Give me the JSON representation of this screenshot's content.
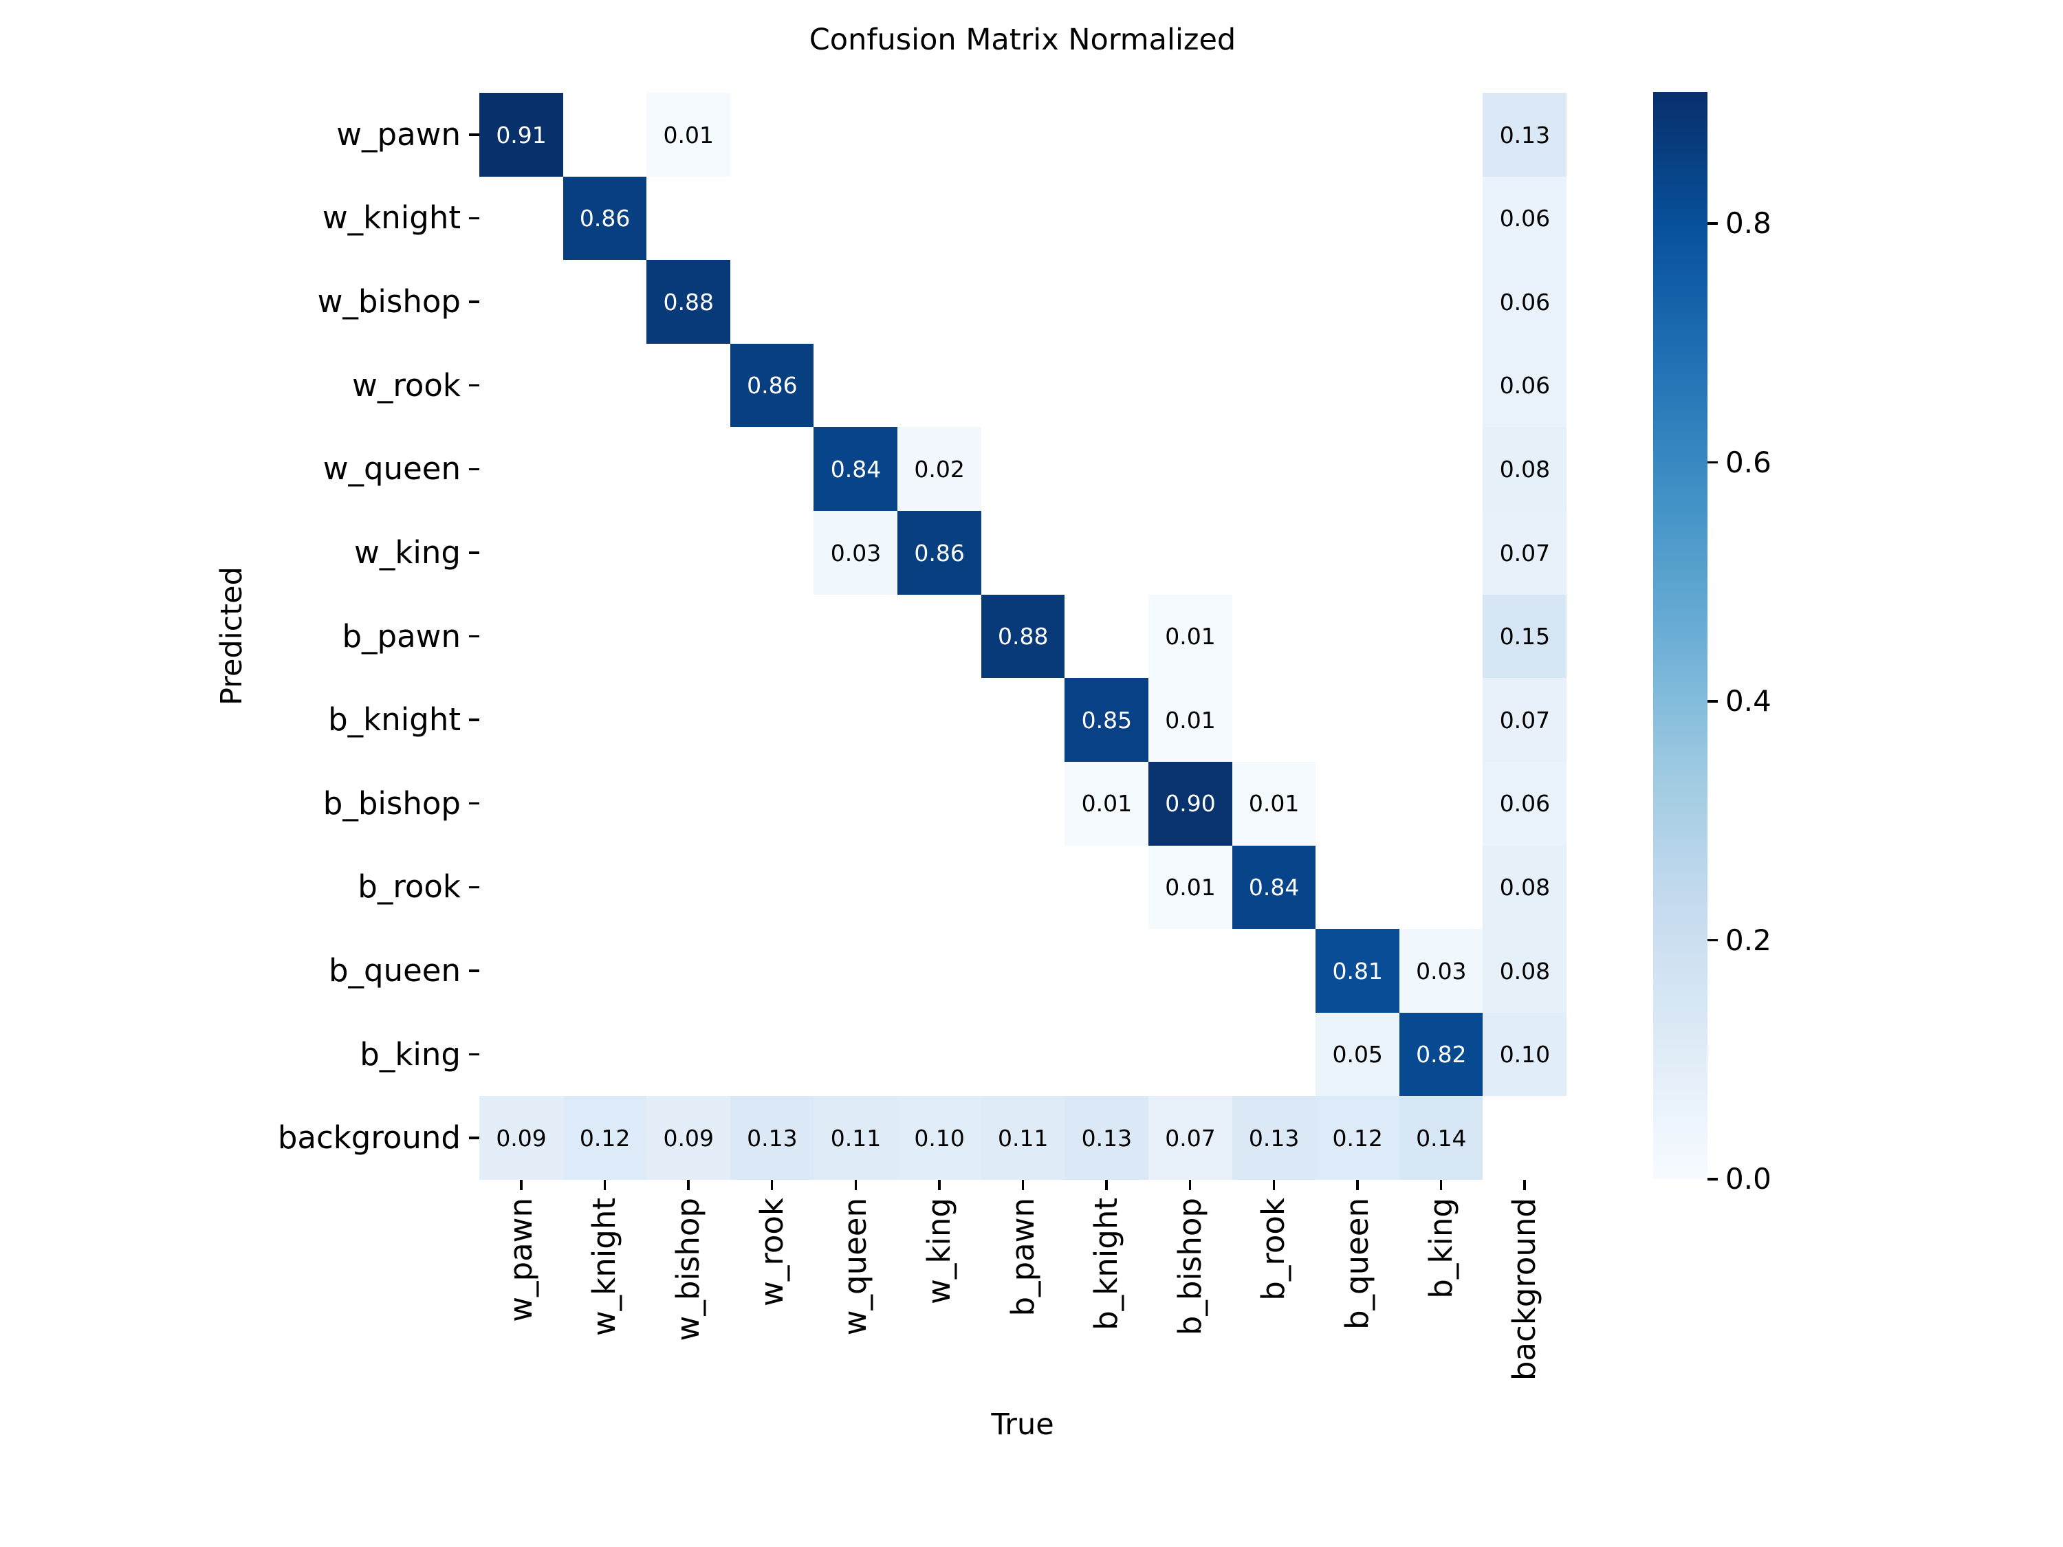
{
  "chart_data": {
    "type": "heatmap",
    "title": "Confusion Matrix Normalized",
    "xlabel": "True",
    "ylabel": "Predicted",
    "x_categories": [
      "w_pawn",
      "w_knight",
      "w_bishop",
      "w_rook",
      "w_queen",
      "w_king",
      "b_pawn",
      "b_knight",
      "b_bishop",
      "b_rook",
      "b_queen",
      "b_king",
      "background"
    ],
    "y_categories": [
      "w_pawn",
      "w_knight",
      "w_bishop",
      "w_rook",
      "w_queen",
      "w_king",
      "b_pawn",
      "b_knight",
      "b_bishop",
      "b_rook",
      "b_queen",
      "b_king",
      "background"
    ],
    "matrix": [
      [
        0.91,
        null,
        0.01,
        null,
        null,
        null,
        null,
        null,
        null,
        null,
        null,
        null,
        0.13
      ],
      [
        null,
        0.86,
        null,
        null,
        null,
        null,
        null,
        null,
        null,
        null,
        null,
        null,
        0.06
      ],
      [
        null,
        null,
        0.88,
        null,
        null,
        null,
        null,
        null,
        null,
        null,
        null,
        null,
        0.06
      ],
      [
        null,
        null,
        null,
        0.86,
        null,
        null,
        null,
        null,
        null,
        null,
        null,
        null,
        0.06
      ],
      [
        null,
        null,
        null,
        null,
        0.84,
        0.02,
        null,
        null,
        null,
        null,
        null,
        null,
        0.08
      ],
      [
        null,
        null,
        null,
        null,
        0.03,
        0.86,
        null,
        null,
        null,
        null,
        null,
        null,
        0.07
      ],
      [
        null,
        null,
        null,
        null,
        null,
        null,
        0.88,
        null,
        0.01,
        null,
        null,
        null,
        0.15
      ],
      [
        null,
        null,
        null,
        null,
        null,
        null,
        null,
        0.85,
        0.01,
        null,
        null,
        null,
        0.07
      ],
      [
        null,
        null,
        null,
        null,
        null,
        null,
        null,
        0.01,
        0.9,
        0.01,
        null,
        null,
        0.06
      ],
      [
        null,
        null,
        null,
        null,
        null,
        null,
        null,
        null,
        0.01,
        0.84,
        null,
        null,
        0.08
      ],
      [
        null,
        null,
        null,
        null,
        null,
        null,
        null,
        null,
        null,
        null,
        0.81,
        0.03,
        0.08
      ],
      [
        null,
        null,
        null,
        null,
        null,
        null,
        null,
        null,
        null,
        null,
        0.05,
        0.82,
        0.1
      ],
      [
        0.09,
        0.12,
        0.09,
        0.13,
        0.11,
        0.1,
        0.11,
        0.13,
        0.07,
        0.13,
        0.12,
        0.14,
        null
      ]
    ],
    "value_format": "0.00",
    "vmin": 0.0,
    "vmax": 0.91,
    "colormap": "Blues",
    "colormap_stops_bottom_to_top": [
      "#f7fbff",
      "#deebf7",
      "#c6dbef",
      "#9ecae1",
      "#6baed6",
      "#4292c6",
      "#2171b5",
      "#08519c",
      "#08306b"
    ],
    "empty_cell_color": "#ffffff",
    "annotation_text_dark": "#000000",
    "annotation_text_light": "#ffffff",
    "colorbar_ticks": [
      "0.0",
      "0.2",
      "0.4",
      "0.6",
      "0.8"
    ],
    "colorbar_tick_values": [
      0.0,
      0.2,
      0.4,
      0.6,
      0.8
    ],
    "colorbar_position": "right",
    "grid": false,
    "background": "#ffffff"
  }
}
